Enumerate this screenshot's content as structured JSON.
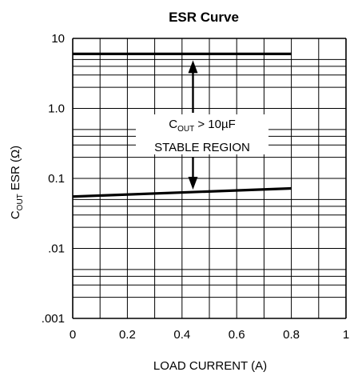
{
  "chart_data": {
    "type": "line",
    "title": "ESR Curve",
    "xlabel": "LOAD CURRENT (A)",
    "ylabel": {
      "main": "C",
      "sub": "OUT",
      "rest": " ESR (Ω)"
    },
    "x_scale": "linear",
    "y_scale": "log",
    "xlim": [
      0,
      1
    ],
    "ylim": [
      0.001,
      10
    ],
    "x_ticks": [
      0,
      0.2,
      0.4,
      0.6,
      0.8,
      1
    ],
    "x_tick_labels": [
      "0",
      "0.2",
      "0.4",
      "0.6",
      "0.8",
      "1"
    ],
    "y_ticks": [
      0.001,
      0.01,
      0.1,
      1,
      10
    ],
    "y_tick_labels": [
      ".001",
      ".01",
      "0.1",
      "1.0",
      "10"
    ],
    "x_grid_step": 0.1,
    "y_minor_grid": [
      2,
      3,
      4,
      5
    ],
    "grid": true,
    "series": [
      {
        "x": [
          0,
          0.8
        ],
        "y": [
          6,
          6
        ]
      },
      {
        "x": [
          0,
          0.8
        ],
        "y": [
          0.055,
          0.072
        ]
      }
    ],
    "annotation": {
      "line1": {
        "main": "C",
        "sub": "OUT",
        "rest": " > 10µF"
      },
      "line2": "STABLE REGION",
      "arrow_x": 0.44,
      "arrow_up_y": 6,
      "arrow_down_y": 0.064
    },
    "line_color": "#000000",
    "grid_color": "#000000"
  }
}
